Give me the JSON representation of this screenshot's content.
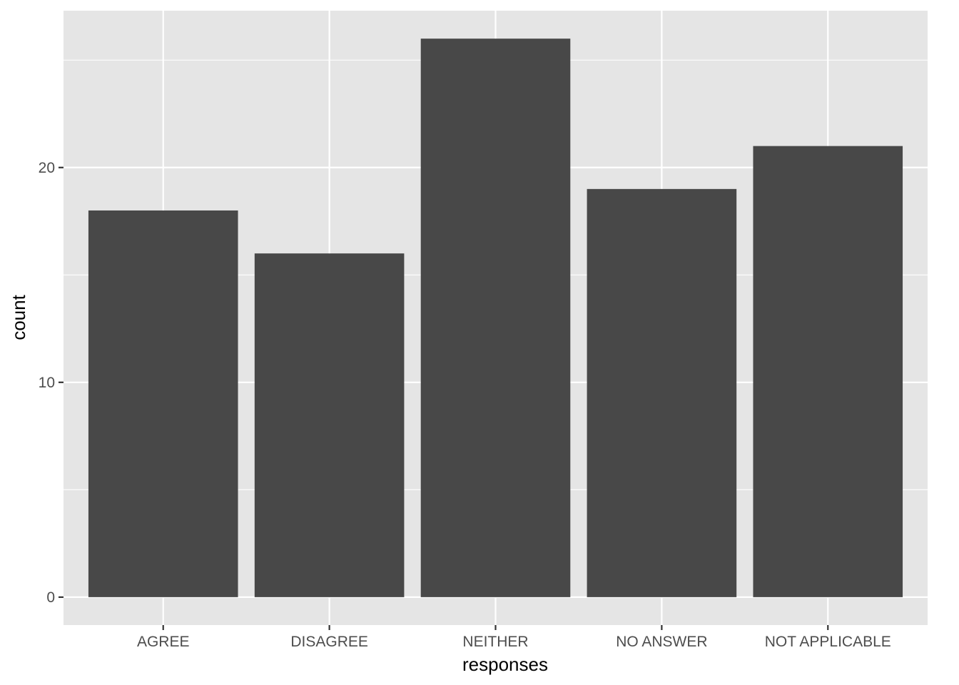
{
  "chart_data": {
    "type": "bar",
    "categories": [
      "AGREE",
      "DISAGREE",
      "NEITHER",
      "NO ANSWER",
      "NOT APPLICABLE"
    ],
    "values": [
      18,
      16,
      26,
      19,
      21
    ],
    "xlabel": "responses",
    "ylabel": "count",
    "ylim": [
      -1.3,
      27.3
    ],
    "y_major_ticks": [
      0,
      10,
      20
    ],
    "y_tick_labels": [
      "0",
      "10",
      "20"
    ],
    "y_minor_ticks": [
      5,
      15,
      25
    ],
    "grid": true,
    "legend": "none",
    "colors": {
      "panel": "#e5e5e5",
      "gridline": "#ffffff",
      "bar": "#484848",
      "tick_label": "#4d4d4d",
      "axis_title": "#000000"
    }
  }
}
